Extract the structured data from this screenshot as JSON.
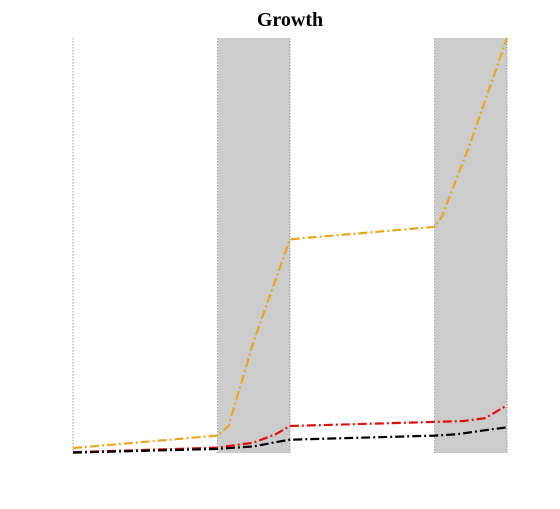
{
  "chart_data": {
    "type": "line",
    "title": "Growth",
    "xlabel": "",
    "ylabel": "",
    "xlim": [
      0,
      6
    ],
    "ylim": [
      0,
      100
    ],
    "grid": false,
    "legend": "none",
    "shaded_regions": [
      [
        2,
        3
      ],
      [
        5,
        6
      ]
    ],
    "vertical_lines": [
      0,
      2,
      3,
      5,
      6
    ],
    "colors": {
      "shade": "#cccccc",
      "orange": "#e8a820",
      "red": "#e01010",
      "black": "#000000"
    },
    "series": [
      {
        "color": "#e8a820",
        "x": [
          0,
          2,
          2.15,
          2.5,
          3,
          5,
          5.1,
          5.5,
          6
        ],
        "y": [
          1.2,
          4.2,
          6.5,
          27,
          51.5,
          54.5,
          57,
          75,
          100
        ]
      },
      {
        "color": "#e01010",
        "x": [
          0,
          2,
          2.5,
          2.8,
          3,
          5,
          5.4,
          5.7,
          6
        ],
        "y": [
          0.2,
          1.3,
          2.5,
          4.5,
          6.5,
          7.5,
          7.7,
          8.4,
          11.5
        ]
      },
      {
        "color": "#000000",
        "x": [
          0,
          2,
          2.5,
          2.8,
          3,
          5,
          5.3,
          5.7,
          6
        ],
        "y": [
          0.1,
          1,
          1.6,
          2.6,
          3.2,
          4.2,
          4.5,
          5.5,
          6.2
        ]
      }
    ]
  }
}
